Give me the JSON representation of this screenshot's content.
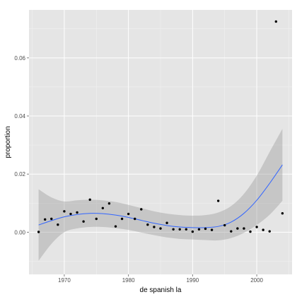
{
  "chart_data": {
    "type": "scatter",
    "xlabel": "de spanish la",
    "ylabel": "proportion",
    "xlim": [
      1964.5,
      2005.5
    ],
    "ylim": [
      -0.0145,
      0.0765
    ],
    "x_ticks": [
      {
        "value": 1970,
        "label": "1970"
      },
      {
        "value": 1980,
        "label": "1980"
      },
      {
        "value": 1990,
        "label": "1990"
      },
      {
        "value": 2000,
        "label": "2000"
      }
    ],
    "y_ticks": [
      {
        "value": 0.0,
        "label": "0.00"
      },
      {
        "value": 0.02,
        "label": "0.02"
      },
      {
        "value": 0.04,
        "label": "0.04"
      },
      {
        "value": 0.06,
        "label": "0.06"
      }
    ],
    "grid": true,
    "points": [
      {
        "x": 1966,
        "y": 0.0001
      },
      {
        "x": 1967,
        "y": 0.0044
      },
      {
        "x": 1968,
        "y": 0.0046
      },
      {
        "x": 1969,
        "y": 0.0026
      },
      {
        "x": 1970,
        "y": 0.0072
      },
      {
        "x": 1971,
        "y": 0.0063
      },
      {
        "x": 1972,
        "y": 0.0068
      },
      {
        "x": 1973,
        "y": 0.0037
      },
      {
        "x": 1974,
        "y": 0.0112
      },
      {
        "x": 1975,
        "y": 0.0046
      },
      {
        "x": 1976,
        "y": 0.0083
      },
      {
        "x": 1977,
        "y": 0.0099
      },
      {
        "x": 1978,
        "y": 0.002
      },
      {
        "x": 1979,
        "y": 0.0046
      },
      {
        "x": 1980,
        "y": 0.0063
      },
      {
        "x": 1981,
        "y": 0.0046
      },
      {
        "x": 1982,
        "y": 0.0079
      },
      {
        "x": 1983,
        "y": 0.0026
      },
      {
        "x": 1984,
        "y": 0.0018
      },
      {
        "x": 1985,
        "y": 0.0013
      },
      {
        "x": 1986,
        "y": 0.0032
      },
      {
        "x": 1987,
        "y": 0.001
      },
      {
        "x": 1988,
        "y": 0.001
      },
      {
        "x": 1989,
        "y": 0.001
      },
      {
        "x": 1990,
        "y": 0.0002
      },
      {
        "x": 1991,
        "y": 0.001
      },
      {
        "x": 1992,
        "y": 0.0012
      },
      {
        "x": 1993,
        "y": 0.0008
      },
      {
        "x": 1994,
        "y": 0.0108
      },
      {
        "x": 1995,
        "y": 0.0024
      },
      {
        "x": 1996,
        "y": 0.0003
      },
      {
        "x": 1997,
        "y": 0.0013
      },
      {
        "x": 1998,
        "y": 0.0013
      },
      {
        "x": 1999,
        "y": 0.0002
      },
      {
        "x": 2000,
        "y": 0.0018
      },
      {
        "x": 2001,
        "y": 0.0008
      },
      {
        "x": 2002,
        "y": 0.0003
      },
      {
        "x": 2003,
        "y": 0.0725
      },
      {
        "x": 2004,
        "y": 0.0065
      }
    ],
    "smooth": [
      {
        "x": 1966,
        "y": 0.0025,
        "lower": -0.0098,
        "upper": 0.0148
      },
      {
        "x": 1968,
        "y": 0.004,
        "lower": -0.004,
        "upper": 0.012
      },
      {
        "x": 1970,
        "y": 0.0053,
        "lower": 0.0,
        "upper": 0.0106
      },
      {
        "x": 1972,
        "y": 0.0061,
        "lower": 0.0013,
        "upper": 0.011
      },
      {
        "x": 1974,
        "y": 0.0065,
        "lower": 0.0018,
        "upper": 0.0112
      },
      {
        "x": 1976,
        "y": 0.0064,
        "lower": 0.0018,
        "upper": 0.011
      },
      {
        "x": 1978,
        "y": 0.0059,
        "lower": 0.0014,
        "upper": 0.0104
      },
      {
        "x": 1980,
        "y": 0.0051,
        "lower": 0.0008,
        "upper": 0.0094
      },
      {
        "x": 1982,
        "y": 0.0041,
        "lower": -0.0001,
        "upper": 0.0083
      },
      {
        "x": 1984,
        "y": 0.0031,
        "lower": -0.001,
        "upper": 0.0072
      },
      {
        "x": 1986,
        "y": 0.0023,
        "lower": -0.0018,
        "upper": 0.0064
      },
      {
        "x": 1988,
        "y": 0.0018,
        "lower": -0.0023,
        "upper": 0.0059
      },
      {
        "x": 1990,
        "y": 0.0016,
        "lower": -0.0025,
        "upper": 0.0057
      },
      {
        "x": 1992,
        "y": 0.0016,
        "lower": -0.0027,
        "upper": 0.0059
      },
      {
        "x": 1994,
        "y": 0.002,
        "lower": -0.0028,
        "upper": 0.0068
      },
      {
        "x": 1996,
        "y": 0.0035,
        "lower": -0.002,
        "upper": 0.009
      },
      {
        "x": 1998,
        "y": 0.0065,
        "lower": -0.0002,
        "upper": 0.0132
      },
      {
        "x": 2000,
        "y": 0.011,
        "lower": 0.0025,
        "upper": 0.0195
      },
      {
        "x": 2002,
        "y": 0.0168,
        "lower": 0.006,
        "upper": 0.0276
      },
      {
        "x": 2004,
        "y": 0.0232,
        "lower": 0.0108,
        "upper": 0.0356
      }
    ],
    "colors": {
      "panel": "#e5e5e5",
      "grid_major": "#ffffff",
      "grid_minor": "#f2f2f2",
      "point": "#000000",
      "smooth_line": "#3366ff",
      "ribbon": "#999999",
      "tick_text": "#4d4d4d",
      "tick_mark": "#7f7f7f"
    }
  }
}
